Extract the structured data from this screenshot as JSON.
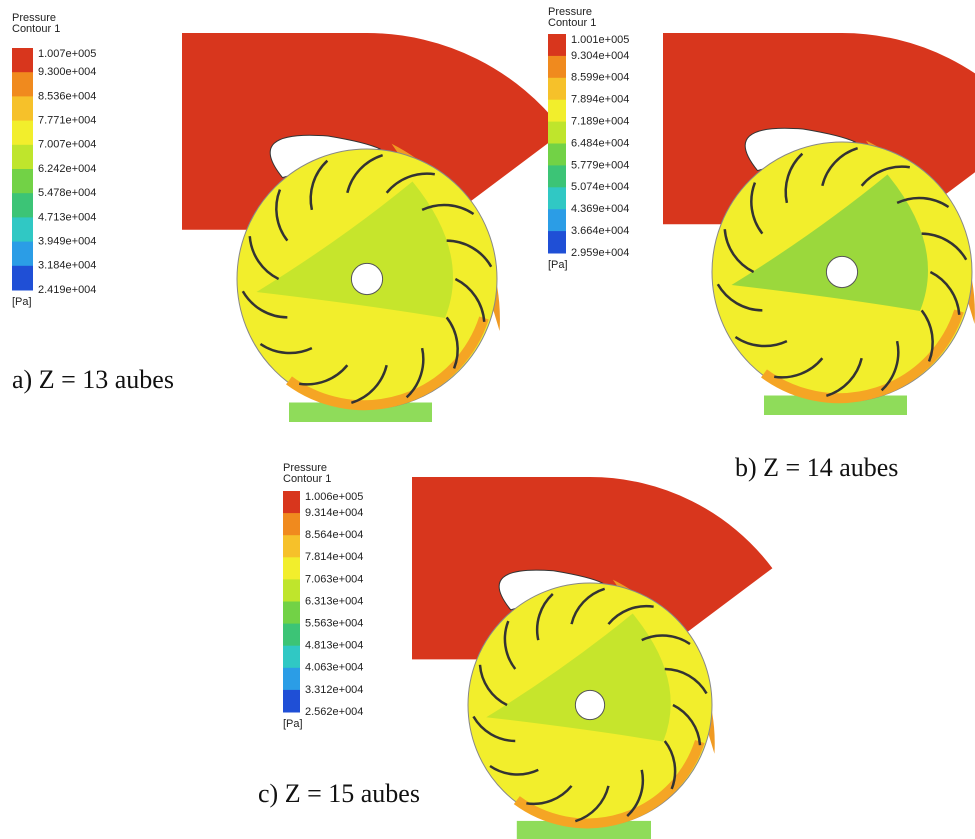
{
  "panels": [
    {
      "legend": {
        "title": "Pressure",
        "subtitle": "Contour 1",
        "labels": [
          "1.007e+005",
          "9.300e+004",
          "8.536e+004",
          "7.771e+004",
          "7.007e+004",
          "6.242e+004",
          "5.478e+004",
          "4.713e+004",
          "3.949e+004",
          "3.184e+004",
          "2.419e+004"
        ],
        "unit": "[Pa]"
      },
      "caption": "a) Z = 13 aubes"
    },
    {
      "legend": {
        "title": "Pressure",
        "subtitle": "Contour 1",
        "labels": [
          "1.001e+005",
          "9.304e+004",
          "8.599e+004",
          "7.894e+004",
          "7.189e+004",
          "6.484e+004",
          "5.779e+004",
          "5.074e+004",
          "4.369e+004",
          "3.664e+004",
          "2.959e+004"
        ],
        "unit": "[Pa]"
      },
      "caption": "b) Z = 14 aubes"
    },
    {
      "legend": {
        "title": "Pressure",
        "subtitle": "Contour 1",
        "labels": [
          "1.006e+005",
          "9.314e+004",
          "8.564e+004",
          "7.814e+004",
          "7.063e+004",
          "6.313e+004",
          "5.563e+004",
          "4.813e+004",
          "4.063e+004",
          "3.312e+004",
          "2.562e+004"
        ],
        "unit": "[Pa]"
      },
      "caption": "c) Z = 15 aubes"
    }
  ]
}
